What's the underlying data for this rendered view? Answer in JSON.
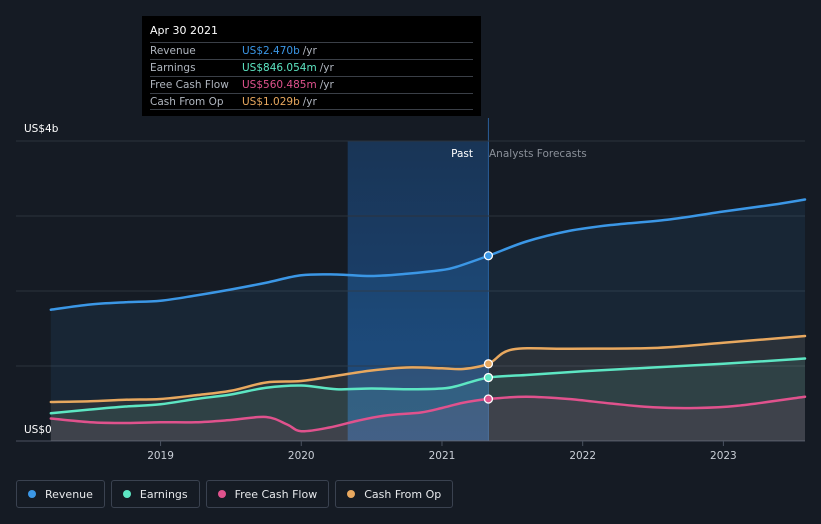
{
  "chart_data": {
    "type": "line",
    "x_unit": "year",
    "xlim": [
      2018.2,
      2023.58
    ],
    "ylim": [
      0,
      4
    ],
    "y_axis": {
      "top_label": "US$4b",
      "bottom_label": "US$0",
      "gridlines": [
        0,
        1,
        2,
        3,
        4
      ]
    },
    "x_ticks": [
      {
        "value": 2019,
        "label": "2019"
      },
      {
        "value": 2020,
        "label": "2020"
      },
      {
        "value": 2021,
        "label": "2021"
      },
      {
        "value": 2022,
        "label": "2022"
      },
      {
        "value": 2023,
        "label": "2023"
      }
    ],
    "past_label": "Past",
    "forecast_label": "Analysts Forecasts",
    "divider_x": 2021.33,
    "highlight_start_x": 2020.33,
    "series": [
      {
        "name": "Revenue",
        "color": "#3b97e6",
        "points": [
          [
            2018.22,
            1.75
          ],
          [
            2018.5,
            1.82
          ],
          [
            2018.75,
            1.85
          ],
          [
            2019.0,
            1.87
          ],
          [
            2019.25,
            1.94
          ],
          [
            2019.5,
            2.02
          ],
          [
            2019.75,
            2.11
          ],
          [
            2020.0,
            2.21
          ],
          [
            2020.25,
            2.22
          ],
          [
            2020.5,
            2.2
          ],
          [
            2020.75,
            2.23
          ],
          [
            2021.0,
            2.28
          ],
          [
            2021.1,
            2.32
          ],
          [
            2021.33,
            2.47
          ],
          [
            2021.6,
            2.66
          ],
          [
            2021.9,
            2.8
          ],
          [
            2022.2,
            2.88
          ],
          [
            2022.6,
            2.95
          ],
          [
            2023.0,
            3.06
          ],
          [
            2023.35,
            3.15
          ],
          [
            2023.58,
            3.22
          ]
        ]
      },
      {
        "name": "Earnings",
        "color": "#5de6c3",
        "points": [
          [
            2018.22,
            0.37
          ],
          [
            2018.5,
            0.42
          ],
          [
            2018.75,
            0.46
          ],
          [
            2019.0,
            0.49
          ],
          [
            2019.25,
            0.56
          ],
          [
            2019.5,
            0.62
          ],
          [
            2019.75,
            0.71
          ],
          [
            2020.0,
            0.74
          ],
          [
            2020.25,
            0.69
          ],
          [
            2020.5,
            0.7
          ],
          [
            2020.75,
            0.69
          ],
          [
            2021.0,
            0.7
          ],
          [
            2021.1,
            0.73
          ],
          [
            2021.33,
            0.846
          ],
          [
            2021.6,
            0.88
          ],
          [
            2022.0,
            0.93
          ],
          [
            2022.5,
            0.98
          ],
          [
            2023.0,
            1.03
          ],
          [
            2023.58,
            1.1
          ]
        ]
      },
      {
        "name": "Free Cash Flow",
        "color": "#e0528d",
        "points": [
          [
            2018.22,
            0.3
          ],
          [
            2018.5,
            0.25
          ],
          [
            2018.75,
            0.24
          ],
          [
            2019.0,
            0.25
          ],
          [
            2019.25,
            0.25
          ],
          [
            2019.5,
            0.28
          ],
          [
            2019.75,
            0.32
          ],
          [
            2019.9,
            0.22
          ],
          [
            2020.0,
            0.13
          ],
          [
            2020.2,
            0.18
          ],
          [
            2020.4,
            0.27
          ],
          [
            2020.6,
            0.34
          ],
          [
            2020.85,
            0.38
          ],
          [
            2021.0,
            0.44
          ],
          [
            2021.15,
            0.51
          ],
          [
            2021.33,
            0.56
          ],
          [
            2021.6,
            0.59
          ],
          [
            2021.9,
            0.56
          ],
          [
            2022.2,
            0.5
          ],
          [
            2022.5,
            0.45
          ],
          [
            2022.8,
            0.44
          ],
          [
            2023.1,
            0.47
          ],
          [
            2023.58,
            0.59
          ]
        ]
      },
      {
        "name": "Cash From Op",
        "color": "#e8a85f",
        "points": [
          [
            2018.22,
            0.52
          ],
          [
            2018.5,
            0.53
          ],
          [
            2018.75,
            0.55
          ],
          [
            2019.0,
            0.56
          ],
          [
            2019.25,
            0.61
          ],
          [
            2019.5,
            0.67
          ],
          [
            2019.75,
            0.78
          ],
          [
            2020.0,
            0.8
          ],
          [
            2020.25,
            0.87
          ],
          [
            2020.5,
            0.94
          ],
          [
            2020.75,
            0.98
          ],
          [
            2021.0,
            0.97
          ],
          [
            2021.15,
            0.96
          ],
          [
            2021.33,
            1.029
          ],
          [
            2021.5,
            1.22
          ],
          [
            2021.9,
            1.23
          ],
          [
            2022.5,
            1.24
          ],
          [
            2023.0,
            1.31
          ],
          [
            2023.58,
            1.4
          ]
        ]
      }
    ]
  },
  "tooltip": {
    "date": "Apr 30 2021",
    "rows": [
      {
        "label": "Revenue",
        "value": "US$2.470b",
        "unit": "/yr",
        "color": "#3b97e6"
      },
      {
        "label": "Earnings",
        "value": "US$846.054m",
        "unit": "/yr",
        "color": "#5de6c3"
      },
      {
        "label": "Free Cash Flow",
        "value": "US$560.485m",
        "unit": "/yr",
        "color": "#e0528d"
      },
      {
        "label": "Cash From Op",
        "value": "US$1.029b",
        "unit": "/yr",
        "color": "#e8a85f"
      }
    ]
  },
  "legend": [
    {
      "label": "Revenue",
      "color": "#3b97e6"
    },
    {
      "label": "Earnings",
      "color": "#5de6c3"
    },
    {
      "label": "Free Cash Flow",
      "color": "#e0528d"
    },
    {
      "label": "Cash From Op",
      "color": "#e8a85f"
    }
  ]
}
